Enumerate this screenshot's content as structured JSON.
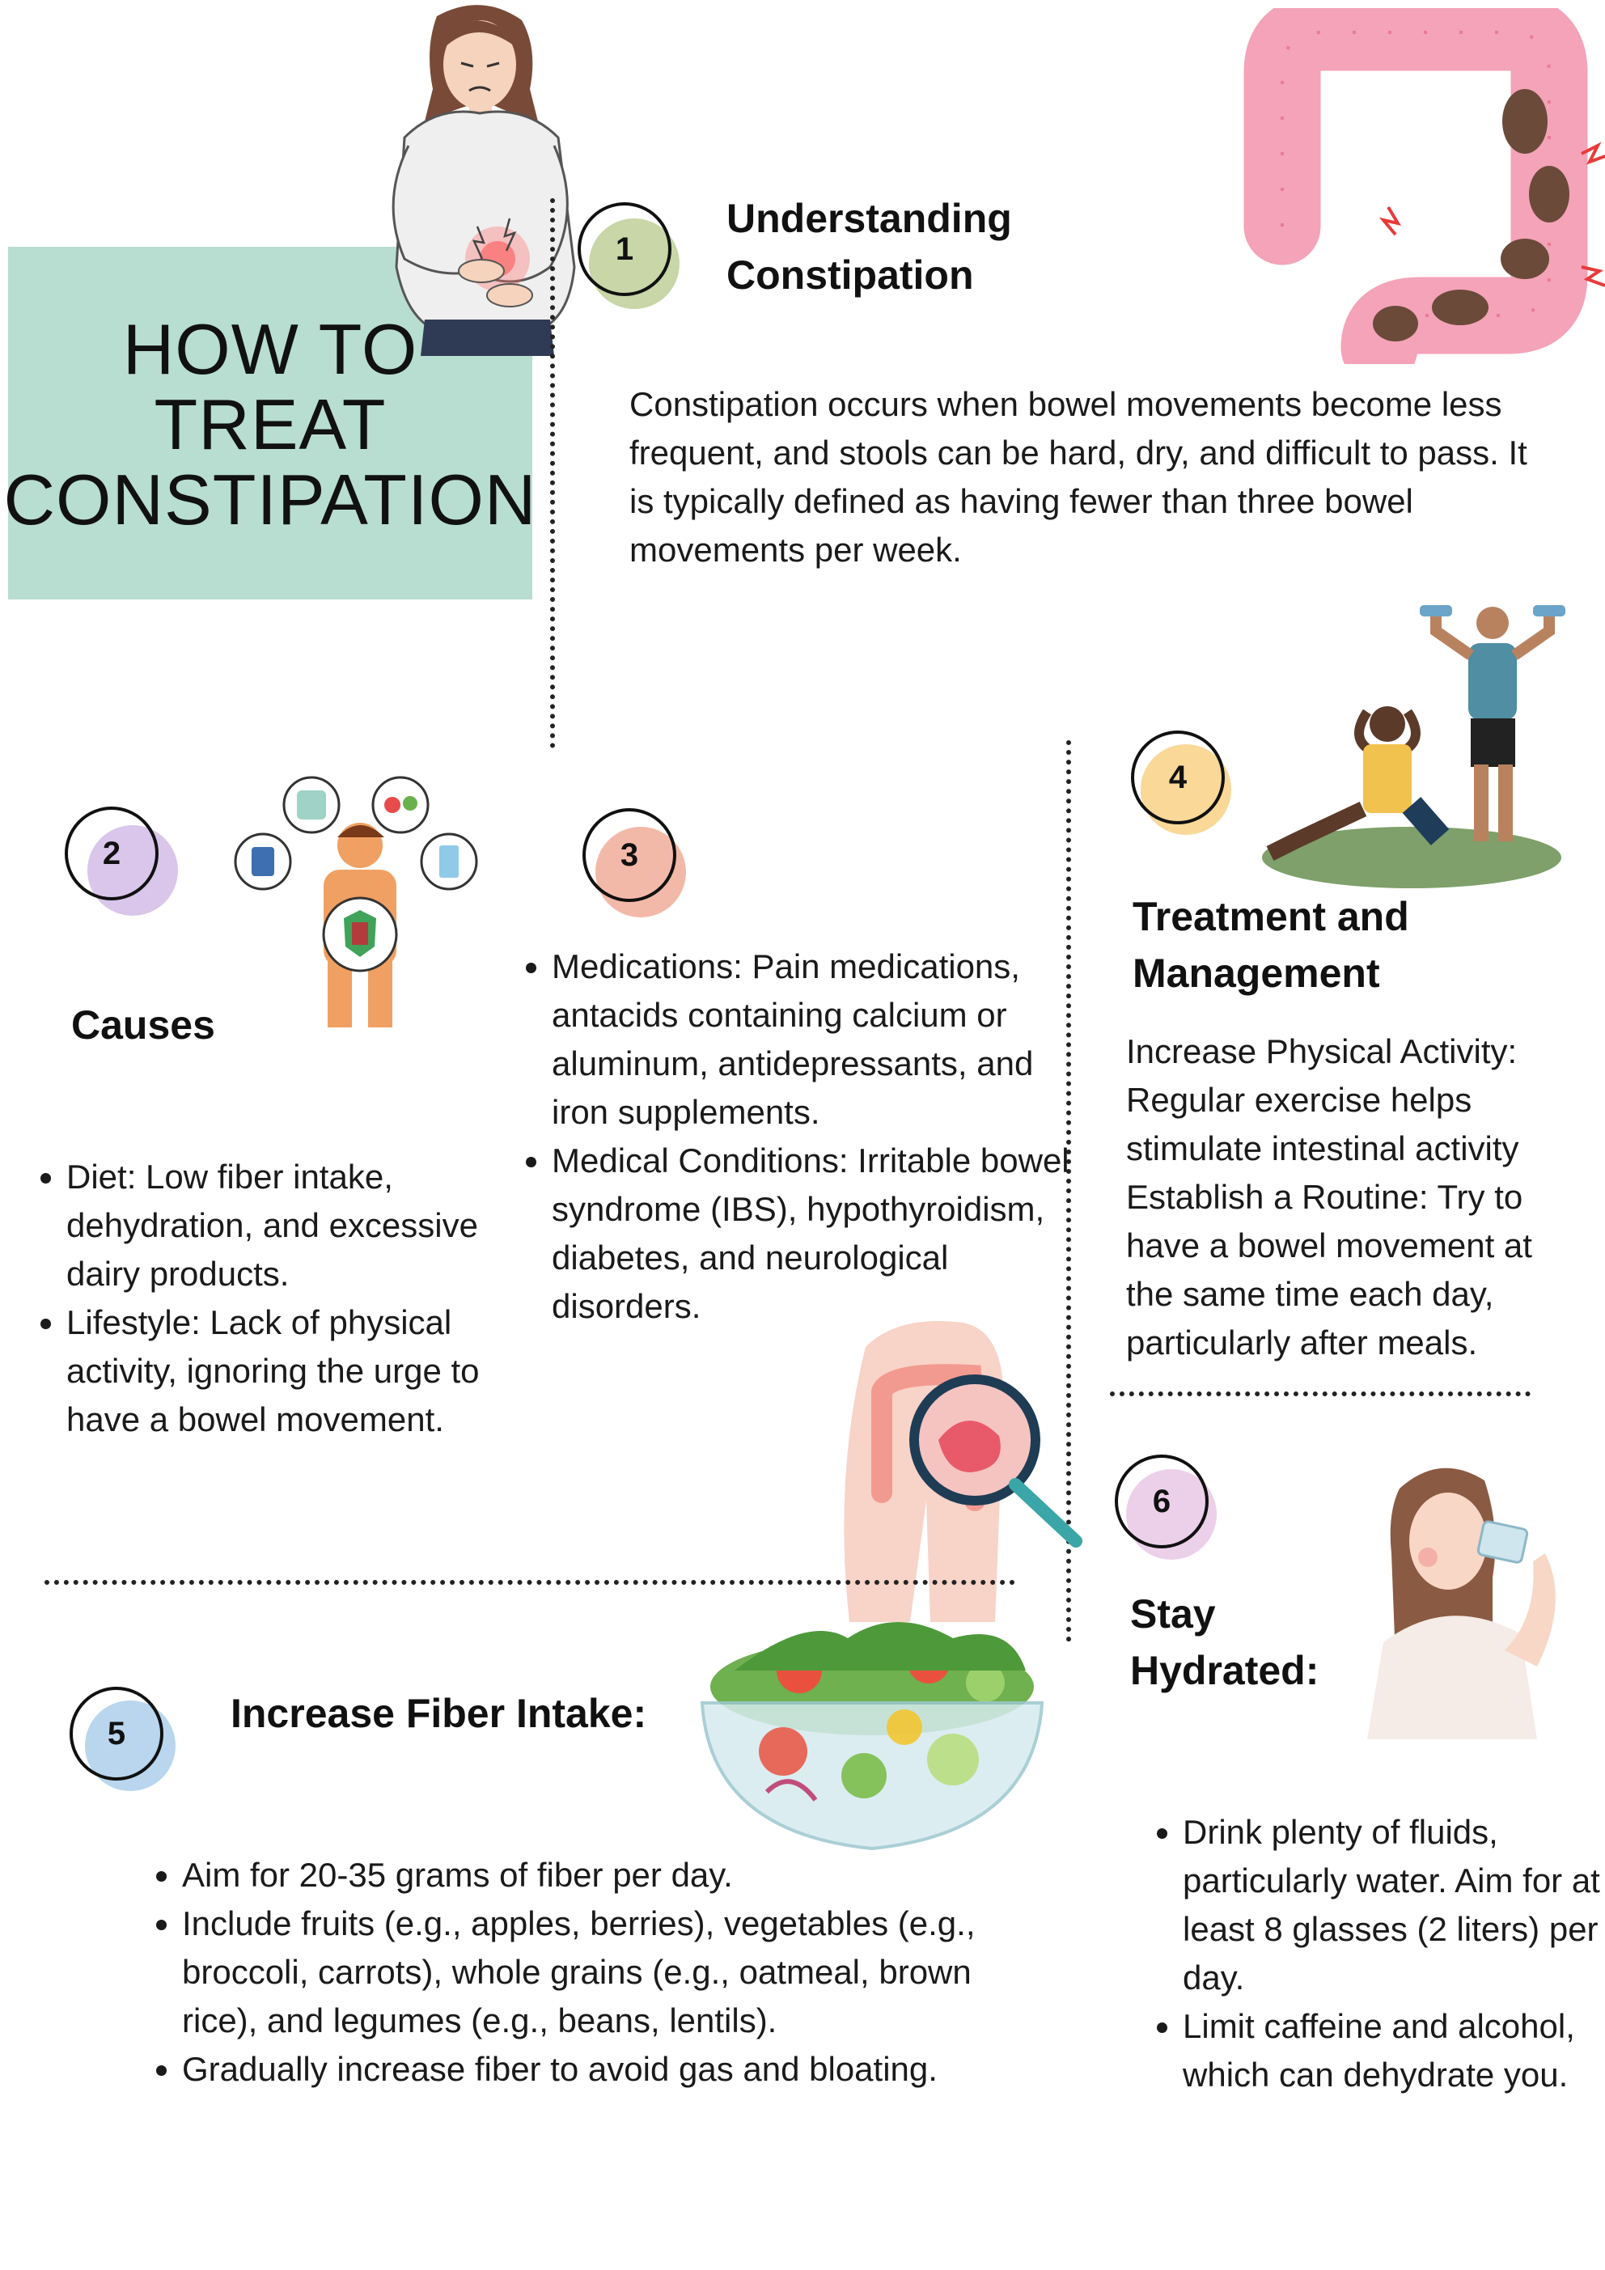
{
  "title": {
    "line1": "HOW TO",
    "line2": "TREAT",
    "line3": "CONSTIPATION"
  },
  "colors": {
    "title_box": "#b8ddd1",
    "circle_1": "#c8d6a8",
    "circle_2": "#d9c6ea",
    "circle_3": "#f3b9a8",
    "circle_4": "#f9d898",
    "circle_5": "#b9d6ee",
    "circle_6": "#ecd0ea"
  },
  "section1": {
    "number": "1",
    "heading_line1": "Understanding",
    "heading_line2": "Constipation",
    "body": "Constipation occurs when bowel movements become less frequent, and stools can be hard, dry, and difficult to pass. It is typically defined as having fewer than three bowel movements per week."
  },
  "section2": {
    "number": "2",
    "heading": "Causes",
    "items": [
      "Diet: Low fiber intake, dehydration, and excessive dairy products.",
      "Lifestyle: Lack of physical activity, ignoring the urge to have a bowel movement."
    ]
  },
  "section3": {
    "number": "3",
    "items": [
      "Medications: Pain medications, antacids containing calcium or aluminum, antidepressants, and iron supplements.",
      "Medical Conditions: Irritable bowel syndrome (IBS), hypothyroidism, diabetes, and neurological disorders."
    ]
  },
  "section4": {
    "number": "4",
    "heading_line1": "Treatment and",
    "heading_line2": "Management",
    "body": "Increase Physical Activity: Regular exercise helps stimulate intestinal activity Establish a Routine: Try to have a bowel movement at the same time each day, particularly after meals."
  },
  "section5": {
    "number": "5",
    "heading": "Increase Fiber Intake:",
    "items": [
      "Aim for 20-35 grams of fiber per day.",
      "Include fruits (e.g., apples, berries), vegetables (e.g., broccoli, carrots), whole grains (e.g., oatmeal, brown rice), and legumes (e.g., beans, lentils).",
      "Gradually increase fiber to avoid gas and bloating."
    ]
  },
  "section6": {
    "number": "6",
    "heading_line1": "Stay",
    "heading_line2": "Hydrated:",
    "items": [
      "Drink plenty of fluids, particularly water. Aim for at least 8 glasses (2 liters) per day.",
      "Limit caffeine and alcohol, which can dehydrate you."
    ]
  },
  "illustrations": {
    "woman_stomach_pain": "woman-stomach-pain-illustration",
    "colon": "colon-illustration",
    "boy_gut": "boy-gut-health-illustration",
    "exercise": "people-exercising-illustration",
    "colon_magnifier": "colon-magnifier-illustration",
    "salad": "salad-bowl-illustration",
    "woman_drinking": "woman-drinking-water-illustration"
  }
}
